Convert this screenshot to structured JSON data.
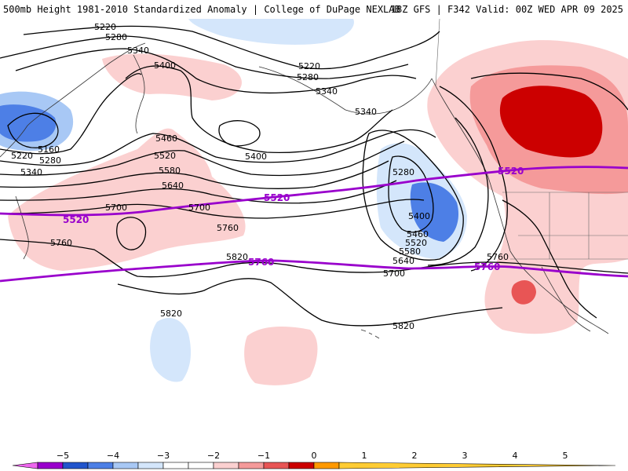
{
  "header": {
    "left": "500mb Height 1981-2010 Standardized Anomaly | College of DuPage NEXLAB",
    "right": "18Z GFS | F342 Valid: 00Z WED APR 09 2025"
  },
  "colors": {
    "contour": "#000000",
    "highlight_contour": "#9900cc",
    "coast": "#333333"
  },
  "contour_labels": [
    {
      "text": "5220"
    },
    {
      "text": "5280"
    },
    {
      "text": "5340"
    },
    {
      "text": "5400"
    },
    {
      "text": "5220"
    },
    {
      "text": "5280"
    },
    {
      "text": "5340"
    },
    {
      "text": "5340"
    },
    {
      "text": "5160"
    },
    {
      "text": "5220"
    },
    {
      "text": "5280"
    },
    {
      "text": "5340"
    },
    {
      "text": "5460"
    },
    {
      "text": "5520"
    },
    {
      "text": "5580"
    },
    {
      "text": "5640"
    },
    {
      "text": "5700"
    },
    {
      "text": "5700"
    },
    {
      "text": "5760"
    },
    {
      "text": "5760"
    },
    {
      "text": "5400"
    },
    {
      "text": "5280"
    },
    {
      "text": "5400"
    },
    {
      "text": "5460"
    },
    {
      "text": "5520"
    },
    {
      "text": "5580"
    },
    {
      "text": "5640"
    },
    {
      "text": "5700"
    },
    {
      "text": "5820"
    },
    {
      "text": "5820"
    },
    {
      "text": "5820"
    },
    {
      "text": "5760"
    }
  ],
  "highlight_labels": [
    {
      "text": "5520"
    },
    {
      "text": "5520"
    },
    {
      "text": "5520"
    },
    {
      "text": "5760"
    },
    {
      "text": "5760"
    }
  ],
  "colorbar": {
    "ticks": [
      "−5",
      "−4",
      "−3",
      "−2",
      "−1",
      "0",
      "1",
      "2",
      "3",
      "4",
      "5"
    ],
    "colors": [
      "#ee66ee",
      "#9900cc",
      "#2255cc",
      "#4d7fe6",
      "#a8c8f5",
      "#d4e6fb",
      "#ffffff",
      "#ffffff",
      "#fbd0d0",
      "#f59a9a",
      "#e85555",
      "#cc0000",
      "#ff9900",
      "#ffcc33"
    ]
  }
}
